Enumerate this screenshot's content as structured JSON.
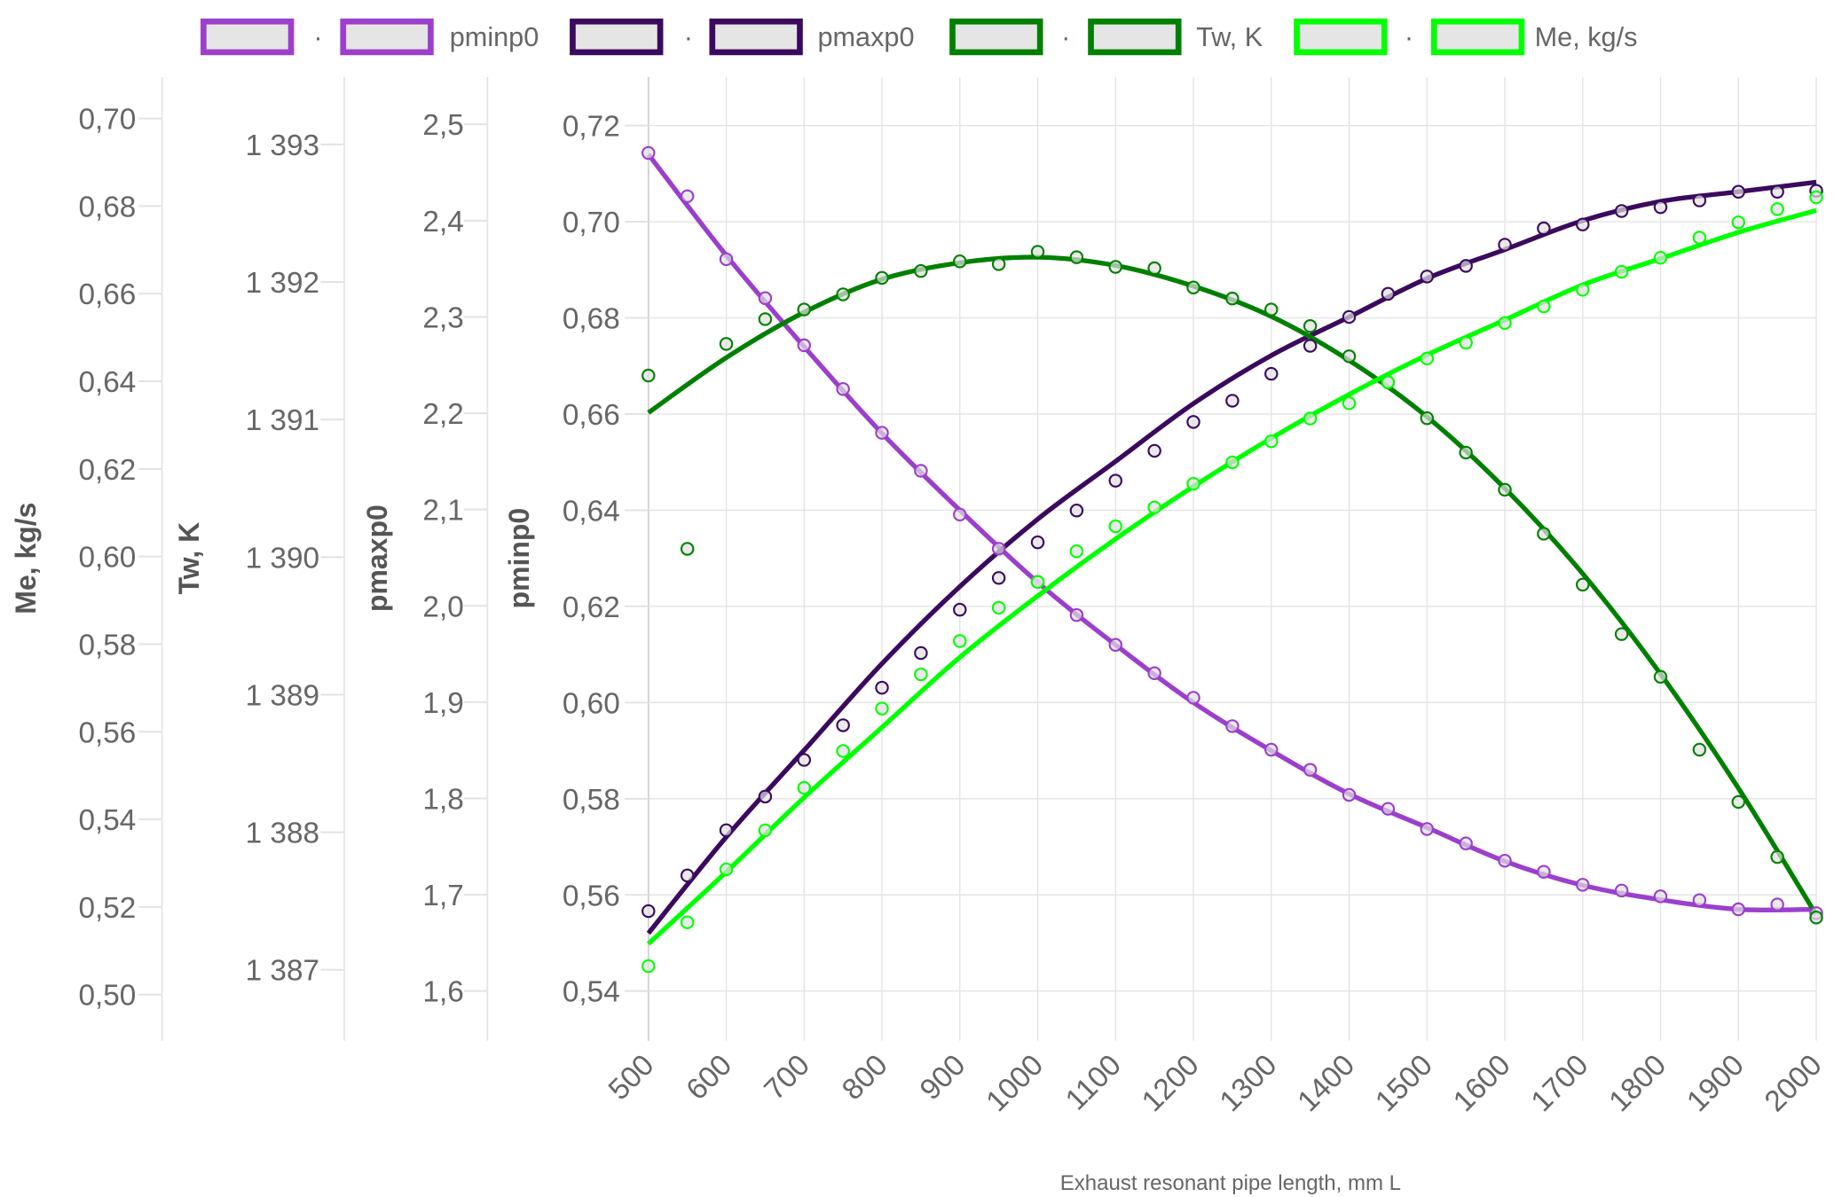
{
  "chart_data": {
    "type": "line",
    "xlabel": "Exhaust resonant pipe length, mm L",
    "x_ticks": [
      "500",
      "600",
      "700",
      "800",
      "900",
      "1000",
      "1100",
      "1200",
      "1300",
      "1400",
      "1500",
      "1600",
      "1700",
      "1800",
      "1900",
      "2000"
    ],
    "xlim": [
      500,
      2000
    ],
    "grid": true,
    "legend_position": "top",
    "legend": [
      {
        "label": "·",
        "color": "#9b3fcc",
        "kind": "markers"
      },
      {
        "label": "pminp0",
        "color": "#9b3fcc",
        "kind": "line"
      },
      {
        "label": "·",
        "color": "#3b0a5e",
        "kind": "markers"
      },
      {
        "label": "pmaxp0",
        "color": "#3b0a5e",
        "kind": "line"
      },
      {
        "label": "·",
        "color": "#008000",
        "kind": "markers"
      },
      {
        "label": "Tw, K",
        "color": "#008000",
        "kind": "line"
      },
      {
        "label": "·",
        "color": "#00ff00",
        "kind": "markers"
      },
      {
        "label": "Me, kg/s",
        "color": "#00ff00",
        "kind": "line"
      }
    ],
    "axes": {
      "me": {
        "label": "Me, kg/s",
        "ylim": [
          0.5,
          0.7
        ],
        "ticks": [
          0.5,
          0.52,
          0.54,
          0.56,
          0.58,
          0.6,
          0.62,
          0.64,
          0.66,
          0.68,
          0.7
        ],
        "tick_labels": [
          "0,50",
          "0,52",
          "0,54",
          "0,56",
          "0,58",
          "0,60",
          "0,62",
          "0,64",
          "0,66",
          "0,68",
          "0,70"
        ]
      },
      "tw": {
        "label": "Tw, K",
        "ylim": [
          1387,
          1393
        ],
        "ticks": [
          1387,
          1388,
          1389,
          1390,
          1391,
          1392,
          1393
        ],
        "tick_labels": [
          "1 387",
          "1 388",
          "1 389",
          "1 390",
          "1 391",
          "1 392",
          "1 393"
        ]
      },
      "pmax": {
        "label": "pmaxp0",
        "ylim": [
          1.6,
          2.5
        ],
        "ticks": [
          1.6,
          1.7,
          1.8,
          1.9,
          2.0,
          2.1,
          2.2,
          2.3,
          2.4,
          2.5
        ],
        "tick_labels": [
          "1,6",
          "1,7",
          "1,8",
          "1,9",
          "2,0",
          "2,1",
          "2,2",
          "2,3",
          "2,4",
          "2,5"
        ]
      },
      "pmin": {
        "label": "pminp0",
        "ylim": [
          0.54,
          0.72
        ],
        "ticks": [
          0.54,
          0.56,
          0.58,
          0.6,
          0.62,
          0.64,
          0.66,
          0.68,
          0.7,
          0.72
        ],
        "tick_labels": [
          "0,54",
          "0,56",
          "0,58",
          "0,60",
          "0,62",
          "0,64",
          "0,66",
          "0,68",
          "0,70",
          "0,72"
        ]
      }
    },
    "x_points": [
      500,
      550,
      600,
      650,
      700,
      750,
      800,
      850,
      900,
      950,
      1000,
      1050,
      1100,
      1150,
      1200,
      1250,
      1300,
      1350,
      1400,
      1450,
      1500,
      1550,
      1600,
      1650,
      1700,
      1750,
      1800,
      1850,
      1900,
      1950,
      2000
    ],
    "x_fit": [
      500,
      600,
      700,
      800,
      900,
      1000,
      1100,
      1200,
      1300,
      1400,
      1500,
      1600,
      1700,
      1800,
      1900,
      2000
    ],
    "series": [
      {
        "name": "pminp0",
        "axis": "pmin",
        "color": "#9b3fcc",
        "points": [
          0.7143,
          0.7053,
          0.6922,
          0.6841,
          0.6743,
          0.6652,
          0.6561,
          0.6482,
          0.6391,
          0.632,
          0.6251,
          0.6182,
          0.612,
          0.6061,
          0.601,
          0.5951,
          0.5902,
          0.586,
          0.5808,
          0.5779,
          0.5737,
          0.5707,
          0.5671,
          0.5648,
          0.5621,
          0.5609,
          0.5597,
          0.5589,
          0.557,
          0.558,
          0.5562
        ],
        "fit": [
          0.714,
          0.693,
          0.674,
          0.656,
          0.64,
          0.625,
          0.612,
          0.6,
          0.59,
          0.581,
          0.574,
          0.567,
          0.562,
          0.559,
          0.557,
          0.557
        ]
      },
      {
        "name": "pmaxp0",
        "axis": "pmax",
        "color": "#3b0a5e",
        "points": [
          1.683,
          1.72,
          1.767,
          1.802,
          1.84,
          1.876,
          1.915,
          1.951,
          1.996,
          2.029,
          2.066,
          2.099,
          2.13,
          2.161,
          2.191,
          2.213,
          2.241,
          2.27,
          2.3,
          2.324,
          2.342,
          2.353,
          2.375,
          2.392,
          2.396,
          2.41,
          2.414,
          2.421,
          2.43,
          2.43,
          2.431
        ],
        "fit": [
          1.66,
          1.76,
          1.85,
          1.94,
          2.02,
          2.09,
          2.15,
          2.21,
          2.26,
          2.3,
          2.34,
          2.37,
          2.4,
          2.42,
          2.43,
          2.44
        ]
      },
      {
        "name": "Tw, K",
        "axis": "tw",
        "color": "#008000",
        "points": [
          1391.32,
          1390.06,
          1391.55,
          1391.73,
          1391.8,
          1391.91,
          1392.03,
          1392.08,
          1392.15,
          1392.13,
          1392.22,
          1392.18,
          1392.11,
          1392.1,
          1391.96,
          1391.88,
          1391.8,
          1391.68,
          1391.46,
          1391.27,
          1391.01,
          1390.76,
          1390.49,
          1390.17,
          1389.8,
          1389.44,
          1389.13,
          1388.6,
          1388.22,
          1387.82,
          1387.38
        ],
        "fit": [
          1391.05,
          1391.45,
          1391.78,
          1392.02,
          1392.14,
          1392.18,
          1392.12,
          1391.97,
          1391.75,
          1391.43,
          1391.02,
          1390.5,
          1389.88,
          1389.15,
          1388.32,
          1387.4
        ]
      },
      {
        "name": "Me, kg/s",
        "axis": "me",
        "color": "#00ff00",
        "points": [
          0.5065,
          0.5165,
          0.5286,
          0.5375,
          0.5472,
          0.5556,
          0.5653,
          0.5731,
          0.5807,
          0.5883,
          0.5942,
          0.6012,
          0.6069,
          0.6112,
          0.6166,
          0.6215,
          0.6263,
          0.6315,
          0.635,
          0.6398,
          0.6452,
          0.6488,
          0.6533,
          0.6571,
          0.6609,
          0.665,
          0.6682,
          0.6728,
          0.6763,
          0.6793,
          0.682
        ],
        "fit": [
          0.5116,
          0.528,
          0.545,
          0.561,
          0.577,
          0.591,
          0.604,
          0.616,
          0.627,
          0.637,
          0.646,
          0.654,
          0.662,
          0.668,
          0.674,
          0.679
        ]
      }
    ]
  }
}
